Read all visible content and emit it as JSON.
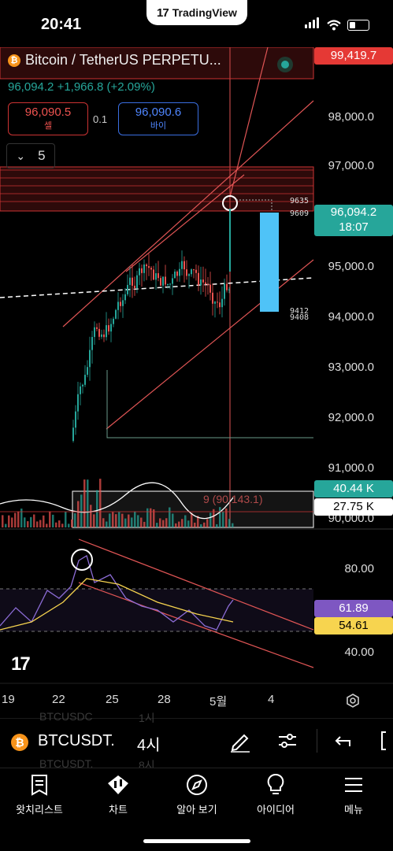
{
  "status": {
    "time": "20:41"
  },
  "banner": {
    "app_name": "TradingView",
    "logo_text": "17"
  },
  "symbol": {
    "title": "Bitcoin / TetherUS PERPETU...",
    "price": "96,094.2",
    "change": "+1,966.8",
    "change_pct": "(+2.09%)"
  },
  "quote": {
    "sell_price": "96,090.5",
    "sell_label": "셀",
    "spread": "0.1",
    "buy_price": "96,090.6",
    "buy_label": "바이"
  },
  "interval_selector": {
    "value": "5"
  },
  "price_axis": {
    "labels": [
      "98,000.0",
      "97,000.0",
      "95,000.0",
      "94,000.0",
      "93,000.0",
      "92,000.0",
      "91,000.0",
      "90,000.0"
    ],
    "top_tag": "99,419.7",
    "current_price_tag": "96,094.2",
    "countdown": "18:07",
    "volume_tag_1": "40.44 K",
    "volume_tag_2": "27.75 K"
  },
  "chart_annotations": {
    "label_9635": "9635",
    "label_9609": "9609",
    "label_9412": "9412",
    "label_9408": "9408",
    "ma_label": "9 (90,143.1)"
  },
  "rsi": {
    "axis_labels": [
      "80.00",
      "40.00"
    ],
    "rsi_tag": "61.89",
    "ma_tag": "54.61"
  },
  "time_axis": {
    "labels": [
      "19",
      "22",
      "25",
      "28",
      "5월",
      "4"
    ]
  },
  "ticker_bar": {
    "symbol": "BTCUSDT.",
    "interval": "4시",
    "ghost_1": "BTCUSDC",
    "ghost_1b": "1시",
    "ghost_2": "BTCUSDT.",
    "ghost_2b": "8시"
  },
  "tabs": [
    {
      "label": "왓치리스트",
      "icon": "watchlist-icon"
    },
    {
      "label": "차트",
      "icon": "chart-icon"
    },
    {
      "label": "알아 보기",
      "icon": "compass-icon"
    },
    {
      "label": "아이디어",
      "icon": "lightbulb-icon"
    },
    {
      "label": "메뉴",
      "icon": "menu-icon"
    }
  ],
  "colors": {
    "up": "#26a69a",
    "down": "#ef5350",
    "accent": "#2962ff",
    "rsi": "#7e57c2",
    "rsi_ma": "#f7d44f",
    "projection": "#4fc3f7"
  }
}
